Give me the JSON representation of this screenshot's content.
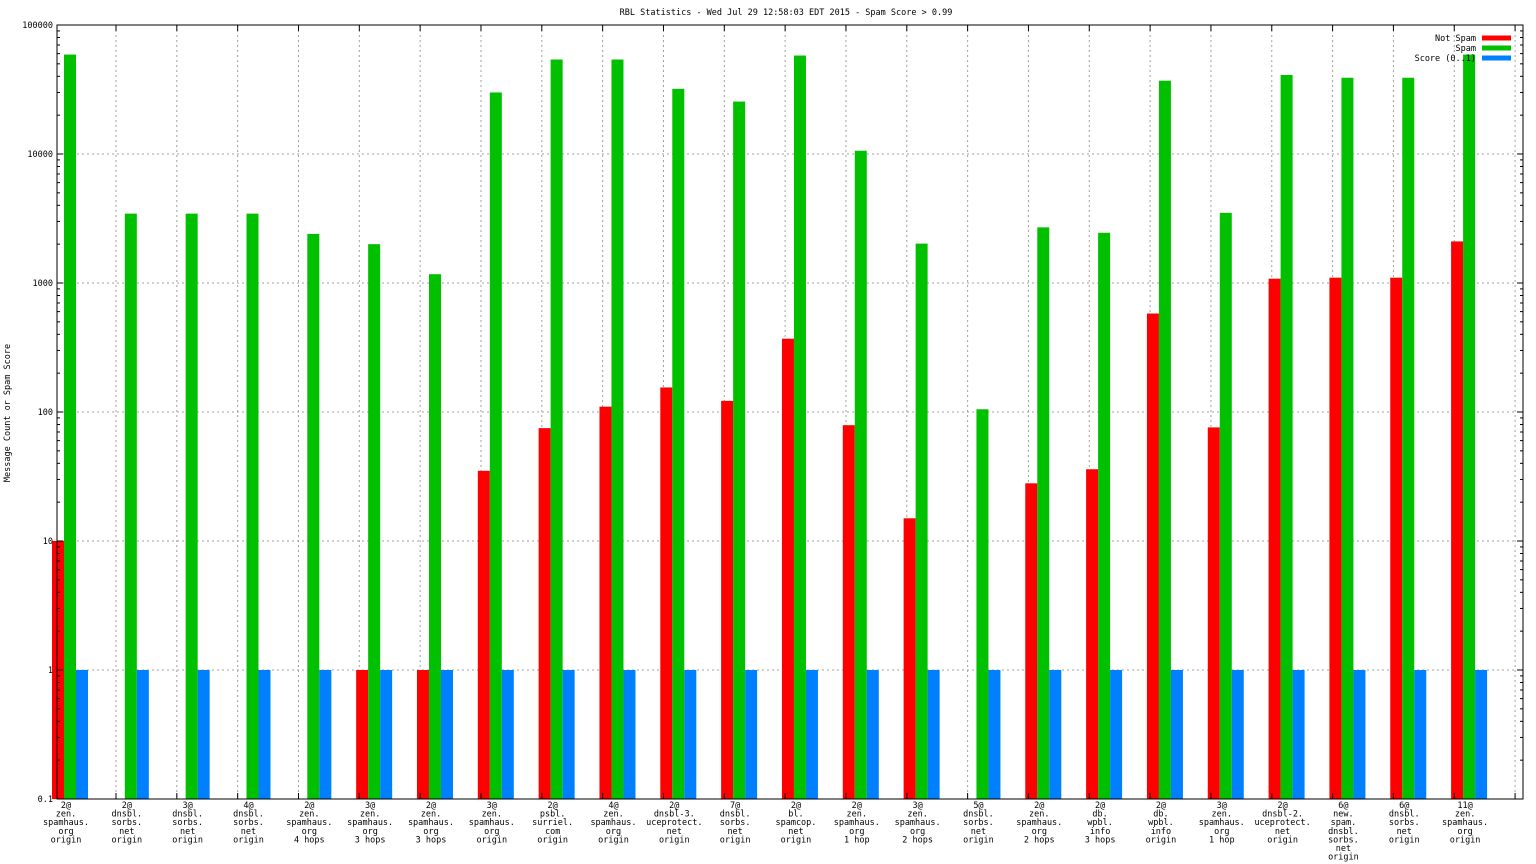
{
  "chart_data": {
    "type": "bar",
    "title": "RBL Statistics - Wed Jul 29 12:58:03 EDT 2015 - Spam Score > 0.99",
    "ylabel": "Message Count or Spam Score",
    "xlabel": "",
    "yscale": "log",
    "ylim": [
      0.1,
      100000
    ],
    "yticks": [
      "0.1",
      "1",
      "10",
      "100",
      "1000",
      "10000",
      "100000"
    ],
    "grid": true,
    "legend_position": "top-right",
    "categories": [
      [
        "2@",
        "zen.",
        "spamhaus.",
        "org",
        "origin"
      ],
      [
        "2@",
        "dnsbl.",
        "sorbs.",
        "net",
        "origin"
      ],
      [
        "3@",
        "dnsbl.",
        "sorbs.",
        "net",
        "origin"
      ],
      [
        "4@",
        "dnsbl.",
        "sorbs.",
        "net",
        "origin"
      ],
      [
        "2@",
        "zen.",
        "spamhaus.",
        "org",
        "4 hops"
      ],
      [
        "3@",
        "zen.",
        "spamhaus.",
        "org",
        "3 hops"
      ],
      [
        "2@",
        "zen.",
        "spamhaus.",
        "org",
        "3 hops"
      ],
      [
        "3@",
        "zen.",
        "spamhaus.",
        "org",
        "origin"
      ],
      [
        "2@",
        "psbl.",
        "surriel.",
        "com",
        "origin"
      ],
      [
        "4@",
        "zen.",
        "spamhaus.",
        "org",
        "origin"
      ],
      [
        "2@",
        "dnsbl-3.",
        "uceprotect.",
        "net",
        "origin"
      ],
      [
        "7@",
        "dnsbl.",
        "sorbs.",
        "net",
        "origin"
      ],
      [
        "2@",
        "bl.",
        "spamcop.",
        "net",
        "origin"
      ],
      [
        "2@",
        "zen.",
        "spamhaus.",
        "org",
        "1 hop"
      ],
      [
        "3@",
        "zen.",
        "spamhaus.",
        "org",
        "2 hops"
      ],
      [
        "5@",
        "dnsbl.",
        "sorbs.",
        "net",
        "origin"
      ],
      [
        "2@",
        "zen.",
        "spamhaus.",
        "org",
        "2 hops"
      ],
      [
        "2@",
        "db.",
        "wpbl.",
        "info",
        "3 hops"
      ],
      [
        "2@",
        "db.",
        "wpbl.",
        "info",
        "origin"
      ],
      [
        "3@",
        "zen.",
        "spamhaus.",
        "org",
        "1 hop"
      ],
      [
        "2@",
        "dnsbl-2.",
        "uceprotect.",
        "net",
        "origin"
      ],
      [
        "6@",
        "new.",
        "spam.",
        "dnsbl.",
        "sorbs.",
        "net",
        "origin"
      ],
      [
        "6@",
        "dnsbl.",
        "sorbs.",
        "net",
        "origin"
      ],
      [
        "11@",
        "zen.",
        "spamhaus.",
        "org",
        "origin"
      ]
    ],
    "series": [
      {
        "name": "Not Spam",
        "color": "#ff0000",
        "values": [
          10,
          0,
          0,
          0,
          0,
          1,
          1,
          35,
          75,
          110,
          155,
          122,
          370,
          79,
          15,
          0,
          28,
          36,
          580,
          76,
          1080,
          1100,
          1100,
          2100
        ]
      },
      {
        "name": "Spam",
        "color": "#00c000",
        "values": [
          59000,
          3450,
          3450,
          3450,
          2400,
          2000,
          1170,
          30000,
          54000,
          54000,
          32000,
          25500,
          58000,
          10600,
          2020,
          105,
          2700,
          2450,
          37000,
          3500,
          41000,
          39000,
          39000,
          59000
        ]
      },
      {
        "name": "Score (0..1)",
        "color": "#0080ff",
        "values": [
          1,
          1,
          1,
          1,
          1,
          1,
          1,
          1,
          1,
          1,
          1,
          1,
          1,
          1,
          1,
          1,
          1,
          1,
          1,
          1,
          1,
          1,
          1,
          1
        ]
      }
    ]
  }
}
